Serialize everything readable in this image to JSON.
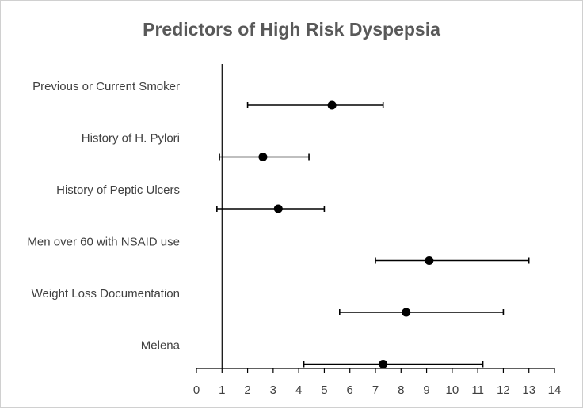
{
  "chart_data": {
    "type": "scatter",
    "title": "Predictors  of High Risk Dyspepsia",
    "xlabel": "",
    "ylabel": "",
    "xlim": [
      0,
      14
    ],
    "x_ticks": [
      "0",
      "1",
      "2",
      "3",
      "4",
      "5",
      "6",
      "7",
      "8",
      "9",
      "10",
      "11",
      "12",
      "13",
      "14"
    ],
    "reference_line_x": 1,
    "grid": false,
    "categories": [
      "Previous or Current Smoker",
      "History of H. Pylori",
      "History of Peptic Ulcers",
      "Men over 60 with NSAID use",
      "Weight Loss Documentation",
      "Melena"
    ],
    "points": [
      {
        "label": "Previous or Current Smoker",
        "value": 5.3,
        "low": 2.0,
        "high": 7.3
      },
      {
        "label": "History of H. Pylori",
        "value": 2.6,
        "low": 0.9,
        "high": 4.4
      },
      {
        "label": "History of Peptic Ulcers",
        "value": 3.2,
        "low": 0.8,
        "high": 5.0
      },
      {
        "label": "Men over 60 with NSAID use",
        "value": 9.1,
        "low": 7.0,
        "high": 13.0
      },
      {
        "label": "Weight Loss Documentation",
        "value": 8.2,
        "low": 5.6,
        "high": 12.0
      },
      {
        "label": "Melena",
        "value": 7.3,
        "low": 4.2,
        "high": 11.2
      }
    ],
    "colors": {
      "marker": "#000000",
      "axis": "#000000",
      "title": "#595959",
      "text": "#404040"
    }
  }
}
